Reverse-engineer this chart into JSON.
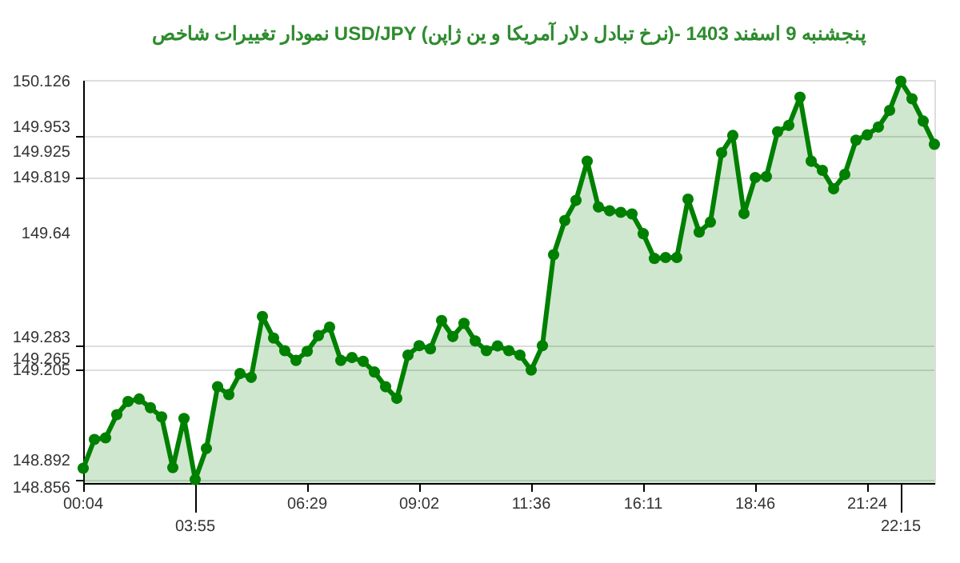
{
  "chart_data": {
    "type": "area",
    "title": "نمودار تغییرات شاخص USD/JPY (نرخ تبادل دلار آمریکا و ین ژاپن)- پنجشنبه 9 اسفند 1403",
    "categories": [
      "00:04",
      null,
      null,
      null,
      null,
      null,
      null,
      null,
      null,
      null,
      "03:55",
      null,
      null,
      null,
      null,
      null,
      null,
      null,
      null,
      null,
      "06:29",
      null,
      null,
      null,
      null,
      null,
      null,
      null,
      null,
      null,
      "09:02",
      null,
      null,
      null,
      null,
      null,
      null,
      null,
      null,
      null,
      "11:36",
      null,
      null,
      null,
      null,
      null,
      null,
      null,
      null,
      null,
      "16:11",
      null,
      null,
      null,
      null,
      null,
      null,
      null,
      null,
      null,
      "18:46",
      null,
      null,
      null,
      null,
      null,
      null,
      null,
      null,
      null,
      "21:24",
      null,
      null,
      "22:15",
      null,
      null,
      null
    ],
    "series": [
      {
        "color": "#008000",
        "values": [
          148.892,
          148.984,
          148.989,
          149.063,
          149.105,
          149.113,
          149.085,
          149.056,
          148.894,
          149.051,
          148.856,
          148.955,
          149.152,
          149.127,
          149.194,
          149.182,
          149.376,
          149.307,
          149.267,
          149.236,
          149.265,
          149.315,
          149.342,
          149.236,
          149.245,
          149.233,
          149.199,
          149.152,
          149.115,
          149.253,
          149.283,
          149.273,
          149.363,
          149.312,
          149.354,
          149.298,
          149.267,
          149.282,
          149.267,
          149.253,
          149.205,
          149.283,
          149.573,
          149.682,
          149.746,
          149.871,
          149.725,
          149.713,
          149.708,
          149.703,
          149.64,
          149.561,
          149.564,
          149.564,
          149.75,
          149.645,
          149.677,
          149.898,
          149.953,
          149.704,
          149.819,
          149.822,
          149.965,
          149.985,
          150.075,
          149.871,
          149.842,
          149.783,
          149.829,
          149.938,
          149.955,
          149.98,
          150.033,
          150.126,
          150.07,
          149.999,
          149.925
        ]
      }
    ],
    "ylim": [
      148.845,
      150.13
    ],
    "yticks": [
      150.126,
      149.953,
      149.925,
      149.819,
      149.64,
      149.283,
      149.265,
      149.205,
      148.892,
      148.856
    ],
    "grid": "y",
    "marker": "circle",
    "line_style": "solid"
  }
}
